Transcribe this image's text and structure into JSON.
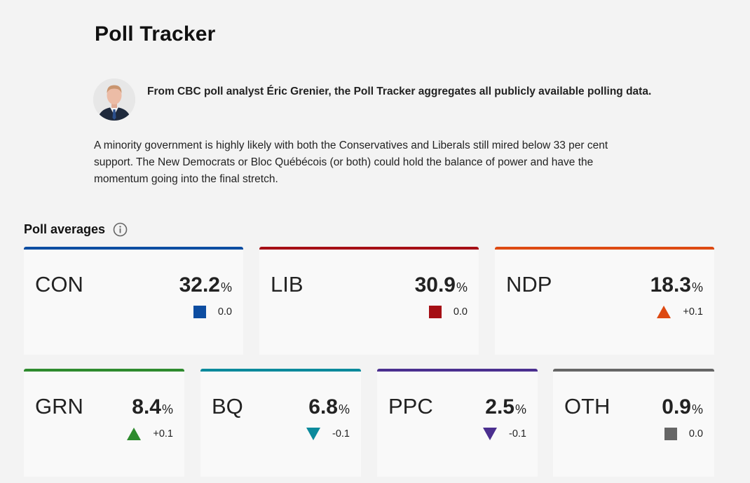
{
  "header": {
    "title": "Poll Tracker"
  },
  "analyst": {
    "avatar_icon": "person-portrait",
    "intro": "From CBC poll analyst Éric Grenier, the Poll Tracker aggregates all publicly available polling data."
  },
  "summary": "A minority government is highly likely with both the Conservatives and Liberals still mired below 33 per cent support. The New Democrats or Bloc Québécois (or both) could hold the balance of power and have the momentum going into the final stretch.",
  "poll_averages": {
    "heading": "Poll averages",
    "info_icon": "info-icon",
    "percent_sign": "%",
    "parties": [
      {
        "abbr": "CON",
        "value": "32.2",
        "change": "0.0",
        "trend": "flat",
        "color": "#0d4da1"
      },
      {
        "abbr": "LIB",
        "value": "30.9",
        "change": "0.0",
        "trend": "flat",
        "color": "#a50f15"
      },
      {
        "abbr": "NDP",
        "value": "18.3",
        "change": "+0.1",
        "trend": "up",
        "color": "#dd4a12"
      },
      {
        "abbr": "GRN",
        "value": "8.4",
        "change": "+0.1",
        "trend": "up",
        "color": "#2e8b2e"
      },
      {
        "abbr": "BQ",
        "value": "6.8",
        "change": "-0.1",
        "trend": "down",
        "color": "#0b8a9c"
      },
      {
        "abbr": "PPC",
        "value": "2.5",
        "change": "-0.1",
        "trend": "down",
        "color": "#4b2f8f"
      },
      {
        "abbr": "OTH",
        "value": "0.9",
        "change": "0.0",
        "trend": "flat",
        "color": "#666666"
      }
    ]
  }
}
